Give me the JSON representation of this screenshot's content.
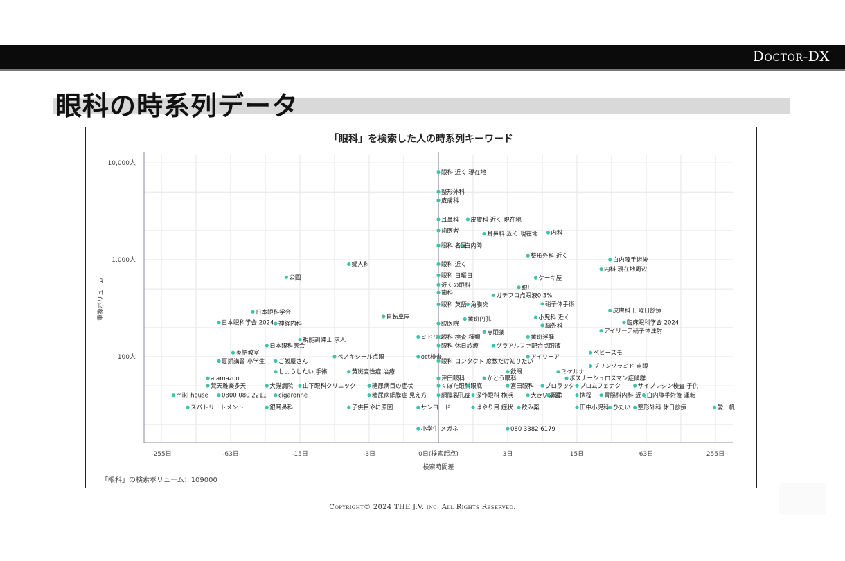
{
  "header": {
    "brand": "Doctor-DX"
  },
  "page": {
    "title": "眼科の時系列データ"
  },
  "footer": {
    "copyright": "Copyright© 2024 THE J.V. inc. All Rights Reserved."
  },
  "colors": {
    "dot": "#3cc3a8",
    "grid": "#e6e6e6",
    "axis": "#8a8aa6",
    "header_bar": "#0b0b0b",
    "title_band": "#d9d9d9"
  },
  "chart_data": {
    "type": "scatter",
    "title": "「眼科」を検索した人の時系列キーワード",
    "xlabel": "検索時間差",
    "ylabel": "重複ボリューム",
    "volume_note": "「眼科」の検索ボリューム：109000",
    "x_scale": "symlog",
    "y_scale": "log",
    "x_ticks": [
      {
        "value": -255,
        "label": "-255日"
      },
      {
        "value": -63,
        "label": "-63日"
      },
      {
        "value": -15,
        "label": "-15日"
      },
      {
        "value": -3,
        "label": "-3日"
      },
      {
        "value": 0,
        "label": "0日(検索起点)"
      },
      {
        "value": 3,
        "label": "3日"
      },
      {
        "value": 15,
        "label": "15日"
      },
      {
        "value": 63,
        "label": "63日"
      },
      {
        "value": 255,
        "label": "255日"
      }
    ],
    "y_ticks": [
      {
        "value": 10000,
        "label": "10,000人"
      },
      {
        "value": 1000,
        "label": "1,000人"
      },
      {
        "value": 100,
        "label": "100人"
      }
    ],
    "ylim": [
      13,
      12000
    ],
    "grid": true,
    "labeled_points": [
      {
        "x": 0,
        "y": 8000,
        "label": "眼科 近く 現在地"
      },
      {
        "x": 0,
        "y": 5000,
        "label": "整形外科"
      },
      {
        "x": 0,
        "y": 4100,
        "label": "皮膚科"
      },
      {
        "x": 0,
        "y": 2600,
        "label": "耳鼻科"
      },
      {
        "x": 0.8,
        "y": 2600,
        "label": "皮膚科 近く 現在地"
      },
      {
        "x": 0,
        "y": 2000,
        "label": "歯医者"
      },
      {
        "x": 1.5,
        "y": 1850,
        "label": "耳鼻科 近く 現在地"
      },
      {
        "x": 8,
        "y": 1900,
        "label": "内科"
      },
      {
        "x": 0,
        "y": 1400,
        "label": "眼科 名医"
      },
      {
        "x": 0.6,
        "y": 1400,
        "label": "白内障"
      },
      {
        "x": 5,
        "y": 1100,
        "label": "整形外科 近く"
      },
      {
        "x": 30,
        "y": 1000,
        "label": "白内障手術後"
      },
      {
        "x": -5,
        "y": 900,
        "label": "婦人科"
      },
      {
        "x": 0,
        "y": 900,
        "label": "眼科 近く"
      },
      {
        "x": 25,
        "y": 800,
        "label": "内科 現在地周辺"
      },
      {
        "x": -20,
        "y": 660,
        "label": "公園"
      },
      {
        "x": 0,
        "y": 690,
        "label": "眼科 日曜日"
      },
      {
        "x": 6,
        "y": 650,
        "label": "ケーキ屋"
      },
      {
        "x": 0,
        "y": 550,
        "label": "近くの眼科"
      },
      {
        "x": 4,
        "y": 520,
        "label": "眼圧"
      },
      {
        "x": 0,
        "y": 460,
        "label": "歯科"
      },
      {
        "x": 2,
        "y": 430,
        "label": "ガチフロ点眼液0.3%"
      },
      {
        "x": 7,
        "y": 350,
        "label": "硝子体手術"
      },
      {
        "x": 0,
        "y": 345,
        "label": "眼科 英語"
      },
      {
        "x": 0.8,
        "y": 345,
        "label": "角膜炎"
      },
      {
        "x": -40,
        "y": 290,
        "label": "日本眼科学会"
      },
      {
        "x": 30,
        "y": 300,
        "label": "皮膚科 日曜日診療"
      },
      {
        "x": -2,
        "y": 260,
        "label": "自転車屋"
      },
      {
        "x": 6,
        "y": 255,
        "label": "小児科 近く"
      },
      {
        "x": 0.7,
        "y": 245,
        "label": "黄斑円孔"
      },
      {
        "x": -80,
        "y": 225,
        "label": "日本眼科学会 2024"
      },
      {
        "x": -25,
        "y": 220,
        "label": "神経内科"
      },
      {
        "x": 0,
        "y": 220,
        "label": "眼医院"
      },
      {
        "x": 40,
        "y": 225,
        "label": "臨床眼科学会 2024"
      },
      {
        "x": 7,
        "y": 210,
        "label": "脳外科"
      },
      {
        "x": 1.5,
        "y": 180,
        "label": "点眼薬"
      },
      {
        "x": 25,
        "y": 185,
        "label": "アイリーア硝子体注射"
      },
      {
        "x": -0.5,
        "y": 160,
        "label": "ミドリン"
      },
      {
        "x": 0,
        "y": 160,
        "label": "眼科 検査 種類"
      },
      {
        "x": 5,
        "y": 160,
        "label": "黄斑浮腫"
      },
      {
        "x": -15,
        "y": 150,
        "label": "視能訓練士 求人"
      },
      {
        "x": -30,
        "y": 130,
        "label": "日本眼科医会"
      },
      {
        "x": 0,
        "y": 130,
        "label": "眼科 休日診療"
      },
      {
        "x": 2,
        "y": 130,
        "label": "グラアルファ配合点眼液"
      },
      {
        "x": 20,
        "y": 110,
        "label": "ベビースモ"
      },
      {
        "x": -60,
        "y": 110,
        "label": "英語教室"
      },
      {
        "x": -7,
        "y": 100,
        "label": "ペノキシール点眼"
      },
      {
        "x": -0.5,
        "y": 100,
        "label": "oct検査"
      },
      {
        "x": 5,
        "y": 100,
        "label": "アイリーア"
      },
      {
        "x": -80,
        "y": 90,
        "label": "夏期講習 小学生"
      },
      {
        "x": -25,
        "y": 90,
        "label": "ご飯屋さん"
      },
      {
        "x": 0,
        "y": 90,
        "label": "眼科 コンタクト 度数だけ知りたい"
      },
      {
        "x": 20,
        "y": 80,
        "label": "ブリンゾラミド 点眼"
      },
      {
        "x": -25,
        "y": 70,
        "label": "しょうしたい 手術"
      },
      {
        "x": -5,
        "y": 70,
        "label": "黄斑変性症 治療"
      },
      {
        "x": 3,
        "y": 70,
        "label": "飲眼"
      },
      {
        "x": 10,
        "y": 70,
        "label": "ミケルナ"
      },
      {
        "x": -100,
        "y": 60,
        "label": "a amazon"
      },
      {
        "x": 0,
        "y": 60,
        "label": "津田眼科"
      },
      {
        "x": 1.5,
        "y": 60,
        "label": "かとう眼科"
      },
      {
        "x": 12,
        "y": 60,
        "label": "ボスナーシュロスマン症候群"
      },
      {
        "x": -100,
        "y": 50,
        "label": "梵天雅楽多天"
      },
      {
        "x": -30,
        "y": 50,
        "label": "犬猫病院"
      },
      {
        "x": -15,
        "y": 50,
        "label": "山下眼科クリニック"
      },
      {
        "x": -3,
        "y": 50,
        "label": "糖尿病目の症状"
      },
      {
        "x": 0,
        "y": 50,
        "label": "くぼた眼科"
      },
      {
        "x": 0.8,
        "y": 50,
        "label": "眼底"
      },
      {
        "x": 3,
        "y": 50,
        "label": "宮田眼科"
      },
      {
        "x": 7,
        "y": 50,
        "label": "プロラック"
      },
      {
        "x": 15,
        "y": 50,
        "label": "プロムフェナク"
      },
      {
        "x": 50,
        "y": 50,
        "label": "サイプレジン検査 子供"
      },
      {
        "x": -200,
        "y": 40,
        "label": "miki house"
      },
      {
        "x": -80,
        "y": 40,
        "label": "0800 080 2211"
      },
      {
        "x": -25,
        "y": 40,
        "label": "cigaronne"
      },
      {
        "x": -3,
        "y": 40,
        "label": "糖尿病網膜症 見え方"
      },
      {
        "x": 0,
        "y": 40,
        "label": "網膜裂孔症"
      },
      {
        "x": 1,
        "y": 40,
        "label": "深作眼科 横浜"
      },
      {
        "x": 5,
        "y": 40,
        "label": "大きい公園"
      },
      {
        "x": 8,
        "y": 40,
        "label": "隔角"
      },
      {
        "x": 15,
        "y": 40,
        "label": "携程"
      },
      {
        "x": 25,
        "y": 40,
        "label": "胃腸科内科 近く"
      },
      {
        "x": 60,
        "y": 40,
        "label": "白内障手術後 運転"
      },
      {
        "x": -150,
        "y": 30,
        "label": "スパトリートメント"
      },
      {
        "x": -30,
        "y": 30,
        "label": "銀耳鼻科"
      },
      {
        "x": -5,
        "y": 30,
        "label": "子供目やに原因"
      },
      {
        "x": -0.5,
        "y": 30,
        "label": "サンヨード"
      },
      {
        "x": 1,
        "y": 30,
        "label": "はやり目 症状"
      },
      {
        "x": 4,
        "y": 30,
        "label": "飲み薬"
      },
      {
        "x": 15,
        "y": 30,
        "label": "田中小児科"
      },
      {
        "x": 30,
        "y": 30,
        "label": "ひたい"
      },
      {
        "x": 50,
        "y": 30,
        "label": "整形外科 休日診療"
      },
      {
        "x": 250,
        "y": 30,
        "label": "愛一帆"
      },
      {
        "x": -0.5,
        "y": 18,
        "label": "小学生 メガネ"
      },
      {
        "x": 3,
        "y": 18,
        "label": "080 3382 6179"
      }
    ]
  }
}
